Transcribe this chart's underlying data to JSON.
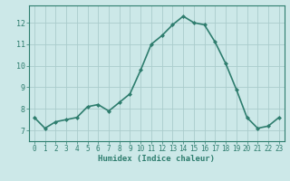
{
  "x": [
    0,
    1,
    2,
    3,
    4,
    5,
    6,
    7,
    8,
    9,
    10,
    11,
    12,
    13,
    14,
    15,
    16,
    17,
    18,
    19,
    20,
    21,
    22,
    23
  ],
  "y": [
    7.6,
    7.1,
    7.4,
    7.5,
    7.6,
    8.1,
    8.2,
    7.9,
    8.3,
    8.7,
    9.8,
    11.0,
    11.4,
    11.9,
    12.3,
    12.0,
    11.9,
    11.1,
    10.1,
    8.9,
    7.6,
    7.1,
    7.2,
    7.6
  ],
  "xlabel": "Humidex (Indice chaleur)",
  "xlim": [
    -0.5,
    23.5
  ],
  "ylim": [
    6.5,
    12.8
  ],
  "yticks": [
    7,
    8,
    9,
    10,
    11,
    12
  ],
  "xticks": [
    0,
    1,
    2,
    3,
    4,
    5,
    6,
    7,
    8,
    9,
    10,
    11,
    12,
    13,
    14,
    15,
    16,
    17,
    18,
    19,
    20,
    21,
    22,
    23
  ],
  "line_color": "#2e7d6e",
  "marker": "D",
  "marker_size": 2.0,
  "bg_color": "#cce8e8",
  "grid_color": "#aacccc",
  "label_color": "#2e7d6e",
  "tick_color": "#2e7d6e",
  "line_width": 1.2,
  "tick_fontsize": 5.5,
  "xlabel_fontsize": 6.5
}
